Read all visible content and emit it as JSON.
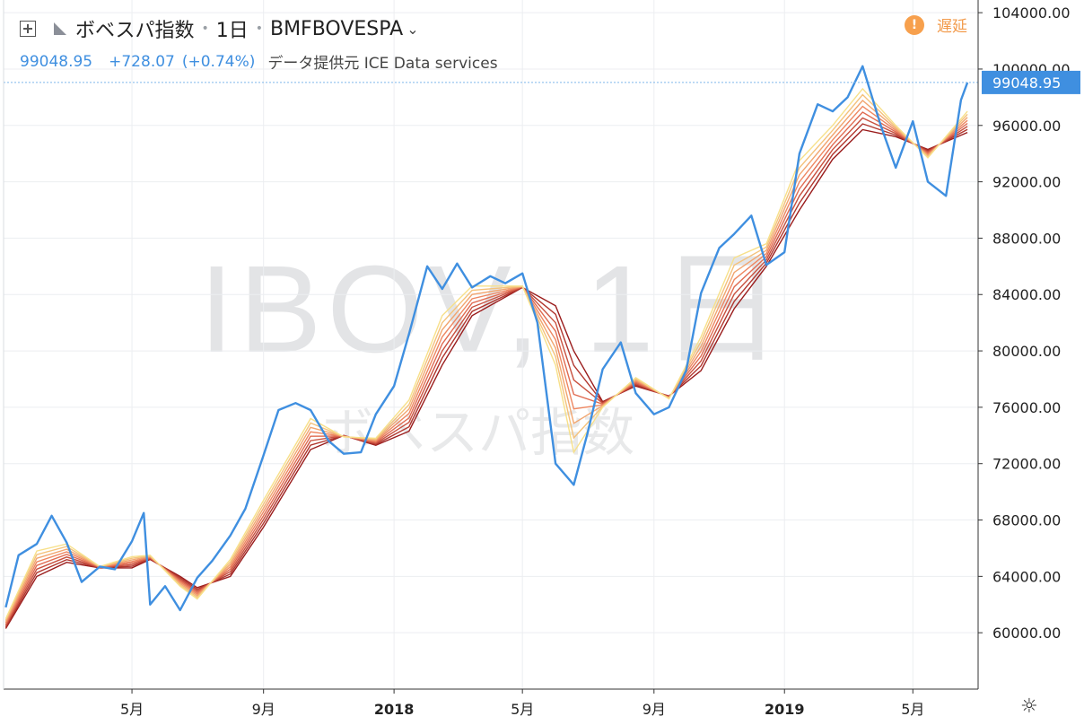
{
  "header": {
    "title": "ボベスパ指数",
    "interval": "1日",
    "symbol": "BMFBOVESPA",
    "last_price": "99048.95",
    "change": "+728.07",
    "change_pct": "(+0.74%)",
    "data_source": "データ提供元 ICE Data services",
    "delayed_label": "遅延",
    "delayed_icon": "!"
  },
  "watermark": {
    "line1": "IBOV, 1日",
    "line2": "ボベスパ指数"
  },
  "price_label": "99048.95",
  "colors": {
    "price_line": "#3f8fe0",
    "ribbon_fast": "#f7e08a",
    "ribbon_slow": "#9a1c1c",
    "delay": "#f29a4a",
    "last_price_bg": "#3f8fe0"
  },
  "chart_data": {
    "type": "line",
    "title": "",
    "y_axis": {
      "position": "right",
      "ticks": [
        "104000.00",
        "100000.00",
        "96000.00",
        "92000.00",
        "88000.00",
        "84000.00",
        "80000.00",
        "76000.00",
        "72000.00",
        "68000.00",
        "64000.00",
        "60000.00"
      ],
      "ylim": [
        56000,
        104900
      ]
    },
    "x_axis": {
      "ticks": [
        "5月",
        "9月",
        "2018",
        "5月",
        "9月",
        "2019",
        "5月"
      ],
      "tick_dates": [
        "2017-05",
        "2017-09",
        "2018-01",
        "2018-05",
        "2018-09",
        "2019-01",
        "2019-05"
      ],
      "range": [
        "2017-01",
        "2019-07"
      ]
    },
    "grid": true,
    "series": [
      {
        "kind": "price",
        "x": [
          "2017-01-03",
          "2017-01-15",
          "2017-02-01",
          "2017-02-15",
          "2017-03-01",
          "2017-03-15",
          "2017-04-01",
          "2017-04-15",
          "2017-05-01",
          "2017-05-12",
          "2017-05-18",
          "2017-06-01",
          "2017-06-15",
          "2017-07-01",
          "2017-07-15",
          "2017-08-01",
          "2017-08-15",
          "2017-09-01",
          "2017-09-15",
          "2017-10-01",
          "2017-10-15",
          "2017-11-01",
          "2017-11-15",
          "2017-12-01",
          "2017-12-15",
          "2018-01-01",
          "2018-01-15",
          "2018-02-01",
          "2018-02-15",
          "2018-03-01",
          "2018-03-15",
          "2018-04-01",
          "2018-04-15",
          "2018-05-01",
          "2018-05-15",
          "2018-06-01",
          "2018-06-18",
          "2018-07-01",
          "2018-07-15",
          "2018-08-01",
          "2018-08-15",
          "2018-09-01",
          "2018-09-15",
          "2018-10-01",
          "2018-10-15",
          "2018-11-01",
          "2018-11-15",
          "2018-12-01",
          "2018-12-15",
          "2019-01-01",
          "2019-01-15",
          "2019-02-01",
          "2019-02-15",
          "2019-03-01",
          "2019-03-15",
          "2019-04-01",
          "2019-04-15",
          "2019-05-01",
          "2019-05-15",
          "2019-06-01",
          "2019-06-15",
          "2019-06-21"
        ],
        "values": [
          61800,
          65500,
          66300,
          68300,
          66400,
          63600,
          64700,
          64500,
          66500,
          68500,
          62000,
          63300,
          61600,
          63900,
          65100,
          66900,
          68800,
          72600,
          75800,
          76300,
          75800,
          73600,
          72700,
          72800,
          75500,
          77500,
          81200,
          86000,
          84400,
          86200,
          84500,
          85300,
          84800,
          85500,
          82000,
          72000,
          70500,
          74200,
          78700,
          80600,
          77000,
          75500,
          76000,
          78600,
          84100,
          87300,
          88300,
          89600,
          86100,
          87000,
          94000,
          97500,
          97000,
          98000,
          100200,
          96000,
          93000,
          96300,
          92000,
          91000,
          97800,
          99049
        ]
      },
      {
        "kind": "ma_ribbon",
        "periods": [
          5,
          10,
          15,
          20,
          25,
          30,
          35,
          40
        ],
        "x": [
          "2017-01-03",
          "2017-02-01",
          "2017-03-01",
          "2017-04-01",
          "2017-05-01",
          "2017-05-18",
          "2017-06-15",
          "2017-07-01",
          "2017-08-01",
          "2017-09-01",
          "2017-10-15",
          "2017-11-15",
          "2017-12-15",
          "2018-01-15",
          "2018-02-15",
          "2018-03-15",
          "2018-05-01",
          "2018-06-01",
          "2018-06-18",
          "2018-07-15",
          "2018-08-15",
          "2018-09-15",
          "2018-10-15",
          "2018-11-15",
          "2018-12-15",
          "2019-01-15",
          "2019-02-15",
          "2019-03-15",
          "2019-04-15",
          "2019-05-15",
          "2019-06-21"
        ],
        "fast": [
          61000,
          65800,
          66300,
          64700,
          65400,
          65500,
          63300,
          62400,
          65200,
          69400,
          75200,
          73900,
          73800,
          76500,
          82500,
          84600,
          84600,
          79000,
          72800,
          76000,
          78100,
          76600,
          81000,
          86600,
          87600,
          93500,
          96000,
          98600,
          96000,
          93700,
          97000
        ],
        "slow": [
          60300,
          64000,
          65000,
          64600,
          64600,
          65200,
          64000,
          63200,
          64000,
          67500,
          73000,
          74000,
          73300,
          74300,
          79000,
          82500,
          84500,
          83200,
          80000,
          76400,
          77500,
          76800,
          78600,
          83000,
          86000,
          90000,
          93600,
          95700,
          95200,
          94300,
          95500
        ]
      }
    ]
  }
}
